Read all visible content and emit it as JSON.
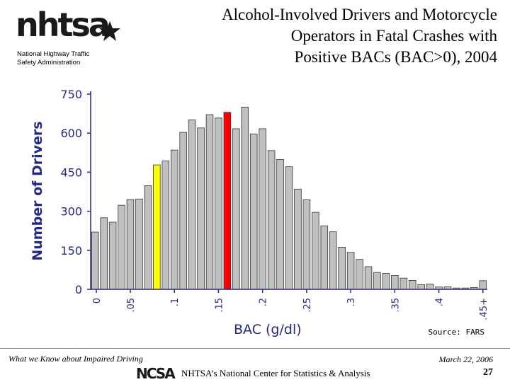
{
  "header": {
    "logo_text": "nhtsa",
    "agency_line1": "National Highway Traffic",
    "agency_line2": "Safety Administration",
    "title_line1": "Alcohol-Involved Drivers and Motorcycle",
    "title_line2": "Operators in Fatal Crashes with",
    "title_line3": "Positive BACs (BAC>0), 2004"
  },
  "chart_data": {
    "type": "bar",
    "xlabel": "BAC (g/dl)",
    "ylabel": "Number of Drivers",
    "ylim": [
      0,
      750
    ],
    "yticks": [
      "0",
      "150",
      "300",
      "450",
      "600",
      "750"
    ],
    "ytick_values": [
      0,
      150,
      300,
      450,
      600,
      750
    ],
    "xtick_labels": [
      "0",
      ".05",
      ".1",
      ".15",
      ".2",
      ".25",
      ".3",
      ".35",
      ".4",
      ".45+"
    ],
    "xtick_bins": [
      0,
      5,
      10,
      15,
      20,
      25,
      30,
      35,
      40,
      45
    ],
    "bins": [
      1,
      2,
      3,
      4,
      5,
      6,
      7,
      8,
      9,
      10,
      11,
      12,
      13,
      14,
      15,
      16,
      17,
      18,
      19,
      20,
      21,
      22,
      23,
      24,
      25,
      26,
      27,
      28,
      29,
      30,
      31,
      32,
      33,
      34,
      35,
      36,
      37,
      38,
      39,
      40,
      41,
      42,
      43,
      44,
      45
    ],
    "values": [
      220,
      275,
      258,
      323,
      345,
      347,
      398,
      478,
      493,
      535,
      603,
      651,
      620,
      671,
      658,
      680,
      617,
      700,
      597,
      617,
      533,
      499,
      471,
      385,
      344,
      296,
      244,
      221,
      162,
      142,
      115,
      87,
      65,
      61,
      53,
      43,
      34,
      18,
      20,
      9,
      10,
      5,
      5,
      7,
      33
    ],
    "highlight": {
      "8": "#ffff00",
      "16": "#ff0000"
    },
    "default_color": "#c0c0c0",
    "axis_color": "#23288c",
    "source": "Source: FARS"
  },
  "footer": {
    "left": "What we Know about Impaired Driving",
    "date": "March 22, 2006",
    "ncsa": "NCSA",
    "org": "NHTSA’s National Center for Statistics & Analysis",
    "page": "27"
  }
}
